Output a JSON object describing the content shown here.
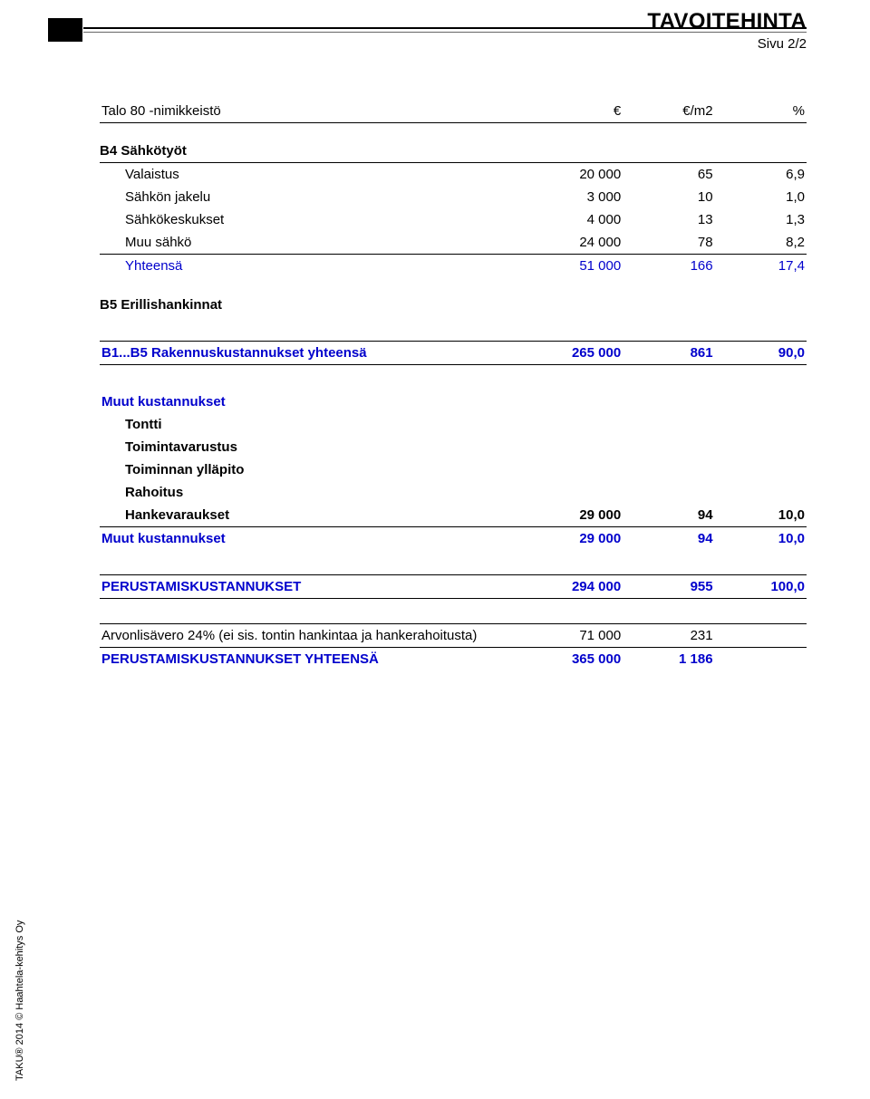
{
  "header": {
    "title": "TAVOITEHINTA",
    "page": "Sivu 2/2"
  },
  "table_heading": {
    "name": "Talo 80 -nimikkeistö",
    "eur": "€",
    "m2": "€/m2",
    "pct": "%"
  },
  "sections": {
    "b4": {
      "title": "B4  Sähkötyöt",
      "rows": [
        {
          "label": "Valaistus",
          "eur": "20 000",
          "m2": "65",
          "pct": "6,9"
        },
        {
          "label": "Sähkön jakelu",
          "eur": "3 000",
          "m2": "10",
          "pct": "1,0"
        },
        {
          "label": "Sähkökeskukset",
          "eur": "4 000",
          "m2": "13",
          "pct": "1,3"
        },
        {
          "label": "Muu sähkö",
          "eur": "24 000",
          "m2": "78",
          "pct": "8,2"
        }
      ],
      "total": {
        "label": "Yhteensä",
        "eur": "51 000",
        "m2": "166",
        "pct": "17,4"
      }
    },
    "b5": {
      "title": "B5  Erillishankinnat"
    },
    "b1_b5": {
      "label": "B1...B5  Rakennuskustannukset yhteensä",
      "eur": "265 000",
      "m2": "861",
      "pct": "90,0"
    },
    "muut": {
      "title": "Muut kustannukset",
      "rows": [
        {
          "label": "Tontti"
        },
        {
          "label": "Toimintavarustus"
        },
        {
          "label": "Toiminnan ylläpito"
        },
        {
          "label": "Rahoitus"
        },
        {
          "label": "Hankevaraukset",
          "eur": "29 000",
          "m2": "94",
          "pct": "10,0"
        }
      ],
      "total": {
        "label": "Muut kustannukset",
        "eur": "29 000",
        "m2": "94",
        "pct": "10,0"
      }
    },
    "perustamis": {
      "label": "PERUSTAMISKUSTANNUKSET",
      "eur": "294 000",
      "m2": "955",
      "pct": "100,0"
    },
    "alv": {
      "label": "Arvonlisävero 24% (ei sis. tontin hankintaa ja hankerahoitusta)",
      "eur": "71 000",
      "m2": "231"
    },
    "grand": {
      "label": "PERUSTAMISKUSTANNUKSET YHTEENSÄ",
      "eur": "365 000",
      "m2": "1 186"
    }
  },
  "footer": {
    "copyright": "TAKU® 2014 © Haahtela-kehitys Oy"
  },
  "colors": {
    "blue": "#0000cc",
    "text": "#000000",
    "bg": "#ffffff"
  }
}
